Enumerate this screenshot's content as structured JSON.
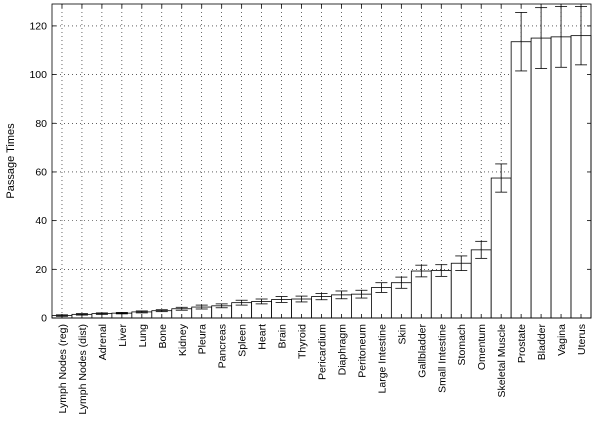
{
  "chart_data": {
    "type": "bar",
    "ylabel": "Passage Times",
    "xlabel": "",
    "ylim": [
      0,
      129
    ],
    "yticks": [
      0,
      20,
      40,
      60,
      80,
      100,
      120
    ],
    "grid": true,
    "categories": [
      "Lymph Nodes (reg)",
      "Lymph Nodes (dist)",
      "Adrenal",
      "Liver",
      "Lung",
      "Bone",
      "Kidney",
      "Pleura",
      "Pancreas",
      "Spleen",
      "Heart",
      "Brain",
      "Thyroid",
      "Pericardium",
      "Diaphragm",
      "Peritoneum",
      "Large Intestine",
      "Skin",
      "Gallbladder",
      "Small Intestine",
      "Stomach",
      "Omentum",
      "Skeletal Muscle",
      "Prostate",
      "Bladder",
      "Vagina",
      "Uterus"
    ],
    "values": [
      1.0,
      1.5,
      1.8,
      2.0,
      2.5,
      3.0,
      3.8,
      4.5,
      5.0,
      6.3,
      6.8,
      7.6,
      7.8,
      8.8,
      9.5,
      9.8,
      12.5,
      14.5,
      19.3,
      19.5,
      22.5,
      28.0,
      57.5,
      113.5,
      115.0,
      115.5,
      116.0
    ],
    "error": [
      0.3,
      0.3,
      0.3,
      0.3,
      0.4,
      0.4,
      0.6,
      0.8,
      0.8,
      1.0,
      1.0,
      1.2,
      1.2,
      1.3,
      1.6,
      1.6,
      2.0,
      2.3,
      2.4,
      2.4,
      3.0,
      3.5,
      5.8,
      12.0,
      12.5,
      12.5,
      12.0
    ]
  }
}
